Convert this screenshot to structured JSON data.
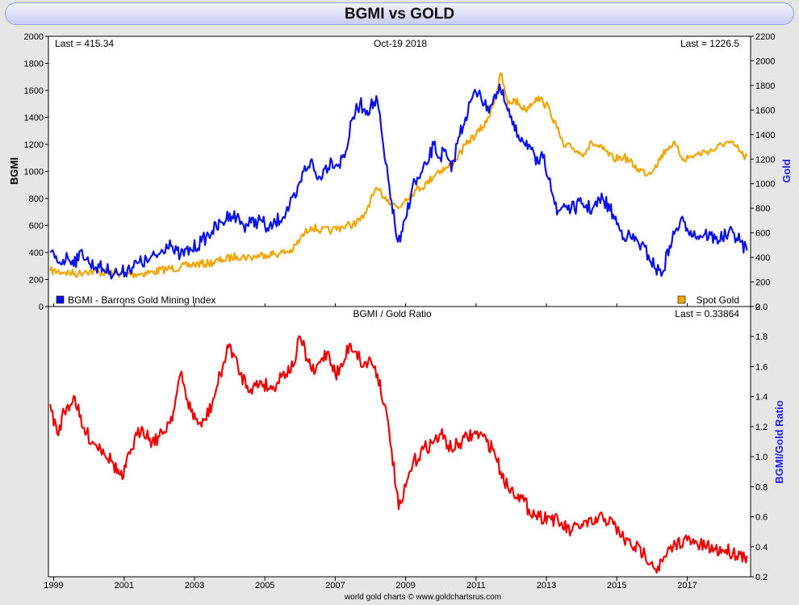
{
  "title": "BGMI vs GOLD",
  "footer": "world gold charts © www.goldchartsrus.com",
  "colors": {
    "bgmi": "#0a12e8",
    "gold": "#f0a500",
    "ratio": "#ee0000",
    "right_axis_label": "#1a1aff"
  },
  "top_panel": {
    "left_axis_label": "BGMI",
    "right_axis_label": "Gold",
    "last_left": "Last = 415.34",
    "date": "Oct-19  2018",
    "last_right": "Last = 1226.5",
    "legend_left": "BGMI - Barrons Gold Mining Index",
    "legend_right": "Spot Gold"
  },
  "bottom_panel": {
    "title": "BGMI / Gold Ratio",
    "last": "Last = 0.33864",
    "right_axis_label": "BGMI/Gold Ratio"
  },
  "chart_data": [
    {
      "type": "line",
      "title": "BGMI vs GOLD",
      "x_range": [
        1998.85,
        2018.8
      ],
      "x_ticks": [
        "1999",
        "2001",
        "2003",
        "2005",
        "2007",
        "2009",
        "2011",
        "2013",
        "2015",
        "2017"
      ],
      "left_axis": {
        "label": "BGMI",
        "ylim": [
          0,
          2000
        ],
        "ticks": [
          "0",
          "200",
          "400",
          "600",
          "800",
          "1000",
          "1200",
          "1400",
          "1600",
          "1800",
          "2000"
        ]
      },
      "right_axis": {
        "label": "Gold",
        "ylim": [
          0,
          2200
        ],
        "ticks": [
          "0",
          "200",
          "400",
          "600",
          "800",
          "1000",
          "1200",
          "1400",
          "1600",
          "1800",
          "2000",
          "2200"
        ]
      },
      "series": [
        {
          "name": "BGMI - Barrons Gold Mining Index",
          "axis": "left",
          "x": [
            1998.9,
            1999.1,
            1999.4,
            1999.7,
            1999.8,
            2000.0,
            2000.3,
            2000.6,
            2000.8,
            2000.9,
            2001.1,
            2001.4,
            2001.7,
            2002.0,
            2002.3,
            2002.4,
            2002.6,
            2002.9,
            2003.2,
            2003.5,
            2003.8,
            2004.0,
            2004.2,
            2004.4,
            2004.6,
            2004.9,
            2005.1,
            2005.3,
            2005.6,
            2005.9,
            2006.1,
            2006.3,
            2006.5,
            2006.7,
            2006.9,
            2007.1,
            2007.3,
            2007.5,
            2007.7,
            2007.9,
            2008.0,
            2008.2,
            2008.4,
            2008.6,
            2008.75,
            2008.85,
            2009.0,
            2009.2,
            2009.4,
            2009.6,
            2009.8,
            2009.95,
            2010.1,
            2010.3,
            2010.5,
            2010.7,
            2010.9,
            2011.1,
            2011.3,
            2011.5,
            2011.7,
            2011.9,
            2012.1,
            2012.3,
            2012.5,
            2012.7,
            2012.9,
            2013.1,
            2013.3,
            2013.5,
            2013.7,
            2014.0,
            2014.3,
            2014.6,
            2014.9,
            2015.1,
            2015.3,
            2015.6,
            2015.9,
            2016.1,
            2016.3,
            2016.5,
            2016.7,
            2016.9,
            2017.1,
            2017.3,
            2017.5,
            2017.8,
            2018.1,
            2018.3,
            2018.5,
            2018.7
          ],
          "y": [
            400,
            330,
            360,
            340,
            420,
            320,
            290,
            260,
            250,
            240,
            280,
            320,
            340,
            390,
            490,
            410,
            380,
            420,
            480,
            560,
            620,
            690,
            660,
            600,
            620,
            640,
            560,
            620,
            700,
            820,
            1000,
            1080,
            940,
            1020,
            1080,
            1050,
            1150,
            1400,
            1500,
            1450,
            1480,
            1520,
            1100,
            780,
            500,
            480,
            650,
            900,
            950,
            1050,
            1200,
            1100,
            1150,
            1000,
            1250,
            1400,
            1550,
            1600,
            1450,
            1550,
            1600,
            1450,
            1300,
            1250,
            1200,
            1050,
            1100,
            950,
            680,
            760,
            720,
            760,
            720,
            800,
            680,
            560,
            520,
            480,
            380,
            280,
            250,
            450,
            580,
            630,
            560,
            520,
            540,
            500,
            520,
            550,
            480,
            415
          ]
        },
        {
          "name": "Spot Gold",
          "axis": "right",
          "x": [
            1998.9,
            1999.3,
            1999.7,
            1999.9,
            2000.3,
            2000.7,
            2001.0,
            2001.4,
            2001.8,
            2002.2,
            2002.6,
            2003.0,
            2003.4,
            2003.8,
            2004.2,
            2004.6,
            2005.0,
            2005.4,
            2005.8,
            2006.0,
            2006.3,
            2006.6,
            2006.9,
            2007.2,
            2007.5,
            2007.8,
            2008.0,
            2008.2,
            2008.5,
            2008.8,
            2009.0,
            2009.3,
            2009.6,
            2009.9,
            2010.2,
            2010.5,
            2010.8,
            2011.0,
            2011.3,
            2011.6,
            2011.7,
            2011.9,
            2012.1,
            2012.4,
            2012.7,
            2012.9,
            2013.1,
            2013.3,
            2013.5,
            2013.7,
            2014.0,
            2014.3,
            2014.6,
            2014.9,
            2015.2,
            2015.6,
            2015.9,
            2016.1,
            2016.4,
            2016.6,
            2016.9,
            2017.2,
            2017.5,
            2017.8,
            2018.1,
            2018.4,
            2018.6,
            2018.7
          ],
          "y": [
            290,
            280,
            265,
            290,
            280,
            272,
            265,
            265,
            280,
            305,
            320,
            345,
            350,
            380,
            410,
            400,
            425,
            430,
            460,
            550,
            650,
            620,
            620,
            650,
            670,
            720,
            870,
            950,
            870,
            800,
            880,
            950,
            1000,
            1100,
            1130,
            1230,
            1350,
            1400,
            1500,
            1750,
            1900,
            1650,
            1680,
            1600,
            1700,
            1670,
            1600,
            1450,
            1300,
            1300,
            1240,
            1330,
            1280,
            1200,
            1220,
            1120,
            1080,
            1150,
            1280,
            1330,
            1200,
            1230,
            1260,
            1280,
            1340,
            1300,
            1220,
            1226.5
          ]
        }
      ],
      "annotations": [
        "Last = 415.34",
        "Oct-19  2018",
        "Last = 1226.5"
      ],
      "legend": "bottom-left / bottom-right"
    },
    {
      "type": "line",
      "title": "BGMI / Gold Ratio",
      "x_range": [
        1998.85,
        2018.8
      ],
      "x_ticks": [
        "1999",
        "2001",
        "2003",
        "2005",
        "2007",
        "2009",
        "2011",
        "2013",
        "2015",
        "2017"
      ],
      "right_axis": {
        "label": "BGMI/Gold Ratio",
        "ylim": [
          0.2,
          2.0
        ],
        "ticks": [
          "0.2",
          "0.4",
          "0.6",
          "0.8",
          "1.0",
          "1.2",
          "1.4",
          "1.6",
          "1.8",
          "2.0"
        ]
      },
      "series": [
        {
          "name": "BGMI / Gold Ratio",
          "x": [
            1998.9,
            1999.1,
            1999.3,
            1999.6,
            1999.8,
            2000.1,
            2000.4,
            2000.7,
            2000.95,
            2001.2,
            2001.5,
            2001.8,
            2002.1,
            2002.4,
            2002.6,
            2002.9,
            2003.2,
            2003.5,
            2003.8,
            2004.0,
            2004.3,
            2004.6,
            2004.9,
            2005.2,
            2005.5,
            2005.8,
            2006.0,
            2006.2,
            2006.4,
            2006.6,
            2006.8,
            2007.0,
            2007.2,
            2007.4,
            2007.6,
            2007.8,
            2008.0,
            2008.2,
            2008.4,
            2008.6,
            2008.8,
            2008.9,
            2009.0,
            2009.2,
            2009.5,
            2009.8,
            2010.0,
            2010.3,
            2010.6,
            2010.9,
            2011.1,
            2011.3,
            2011.5,
            2011.7,
            2011.9,
            2012.2,
            2012.5,
            2012.8,
            2013.1,
            2013.4,
            2013.7,
            2014.0,
            2014.3,
            2014.6,
            2014.9,
            2015.2,
            2015.5,
            2015.8,
            2016.0,
            2016.1,
            2016.3,
            2016.6,
            2016.9,
            2017.2,
            2017.5,
            2017.8,
            2018.1,
            2018.3,
            2018.5,
            2018.7
          ],
          "y": [
            1.35,
            1.15,
            1.3,
            1.4,
            1.2,
            1.1,
            1.05,
            0.95,
            0.85,
            1.05,
            1.2,
            1.1,
            1.15,
            1.3,
            1.55,
            1.3,
            1.2,
            1.35,
            1.6,
            1.75,
            1.55,
            1.45,
            1.5,
            1.45,
            1.55,
            1.6,
            1.8,
            1.65,
            1.55,
            1.65,
            1.7,
            1.55,
            1.6,
            1.75,
            1.7,
            1.6,
            1.65,
            1.55,
            1.35,
            1.05,
            0.65,
            0.7,
            0.8,
            0.95,
            1.05,
            1.1,
            1.15,
            1.05,
            1.1,
            1.15,
            1.15,
            1.1,
            1.05,
            0.9,
            0.8,
            0.75,
            0.65,
            0.6,
            0.6,
            0.55,
            0.5,
            0.55,
            0.55,
            0.6,
            0.55,
            0.45,
            0.4,
            0.35,
            0.3,
            0.25,
            0.3,
            0.4,
            0.45,
            0.42,
            0.4,
            0.38,
            0.38,
            0.36,
            0.35,
            0.34
          ]
        }
      ]
    }
  ]
}
